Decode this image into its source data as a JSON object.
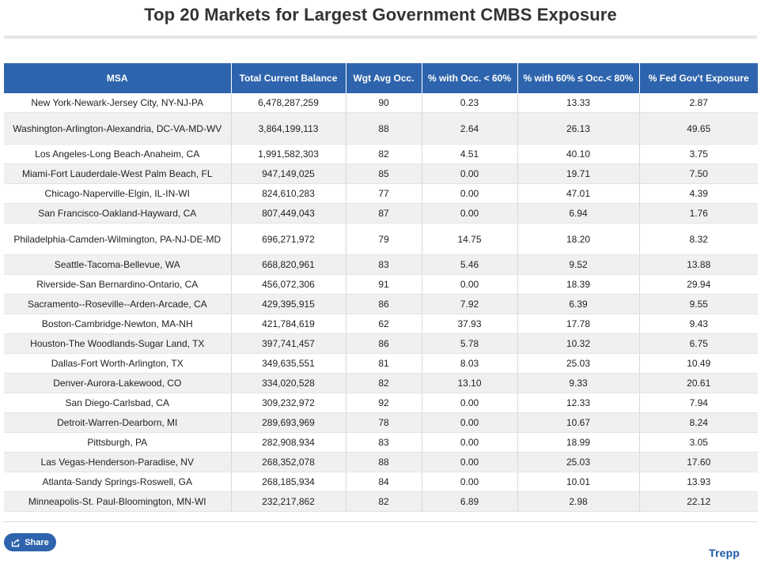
{
  "page": {
    "title": "Top 20 Markets for Largest Government CMBS Exposure"
  },
  "table": {
    "headers": [
      "MSA",
      "Total Current Balance",
      "Wgt Avg Occ.",
      "% with Occ. < 60%",
      "% with 60% ≤ Occ.< 80%",
      "% Fed Gov't Exposure"
    ],
    "rows": [
      [
        "New York-Newark-Jersey City, NY-NJ-PA",
        "6,478,287,259",
        "90",
        "0.23",
        "13.33",
        "2.87"
      ],
      [
        "Washington-Arlington-Alexandria, DC-VA-MD-WV",
        "3,864,199,113",
        "88",
        "2.64",
        "26.13",
        "49.65"
      ],
      [
        "Los Angeles-Long Beach-Anaheim, CA",
        "1,991,582,303",
        "82",
        "4.51",
        "40.10",
        "3.75"
      ],
      [
        "Miami-Fort Lauderdale-West Palm Beach, FL",
        "947,149,025",
        "85",
        "0.00",
        "19.71",
        "7.50"
      ],
      [
        "Chicago-Naperville-Elgin, IL-IN-WI",
        "824,610,283",
        "77",
        "0.00",
        "47.01",
        "4.39"
      ],
      [
        "San Francisco-Oakland-Hayward, CA",
        "807,449,043",
        "87",
        "0.00",
        "6.94",
        "1.76"
      ],
      [
        "Philadelphia-Camden-Wilmington, PA-NJ-DE-MD",
        "696,271,972",
        "79",
        "14.75",
        "18.20",
        "8.32"
      ],
      [
        "Seattle-Tacoma-Bellevue, WA",
        "668,820,961",
        "83",
        "5.46",
        "9.52",
        "13.88"
      ],
      [
        "Riverside-San Bernardino-Ontario, CA",
        "456,072,306",
        "91",
        "0.00",
        "18.39",
        "29.94"
      ],
      [
        "Sacramento--Roseville--Arden-Arcade, CA",
        "429,395,915",
        "86",
        "7.92",
        "6.39",
        "9.55"
      ],
      [
        "Boston-Cambridge-Newton, MA-NH",
        "421,784,619",
        "62",
        "37.93",
        "17.78",
        "9.43"
      ],
      [
        "Houston-The Woodlands-Sugar Land, TX",
        "397,741,457",
        "86",
        "5.78",
        "10.32",
        "6.75"
      ],
      [
        "Dallas-Fort Worth-Arlington, TX",
        "349,635,551",
        "81",
        "8.03",
        "25.03",
        "10.49"
      ],
      [
        "Denver-Aurora-Lakewood, CO",
        "334,020,528",
        "82",
        "13.10",
        "9.33",
        "20.61"
      ],
      [
        "San Diego-Carlsbad, CA",
        "309,232,972",
        "92",
        "0.00",
        "12.33",
        "7.94"
      ],
      [
        "Detroit-Warren-Dearborn, MI",
        "289,693,969",
        "78",
        "0.00",
        "10.67",
        "8.24"
      ],
      [
        "Pittsburgh, PA",
        "282,908,934",
        "83",
        "0.00",
        "18.99",
        "3.05"
      ],
      [
        "Las Vegas-Henderson-Paradise, NV",
        "268,352,078",
        "88",
        "0.00",
        "25.03",
        "17.60"
      ],
      [
        "Atlanta-Sandy Springs-Roswell, GA",
        "268,185,934",
        "84",
        "0.00",
        "10.01",
        "13.93"
      ],
      [
        "Minneapolis-St. Paul-Bloomington, MN-WI",
        "232,217,862",
        "82",
        "6.89",
        "2.98",
        "22.12"
      ]
    ]
  },
  "footer": {
    "share_label": "Share",
    "share_icon": "share-icon",
    "brand": "Trepp"
  },
  "colors": {
    "header_bg": "#2e64ad",
    "stripe_bg": "#f0f0f0",
    "brand": "#1f5aa6"
  }
}
